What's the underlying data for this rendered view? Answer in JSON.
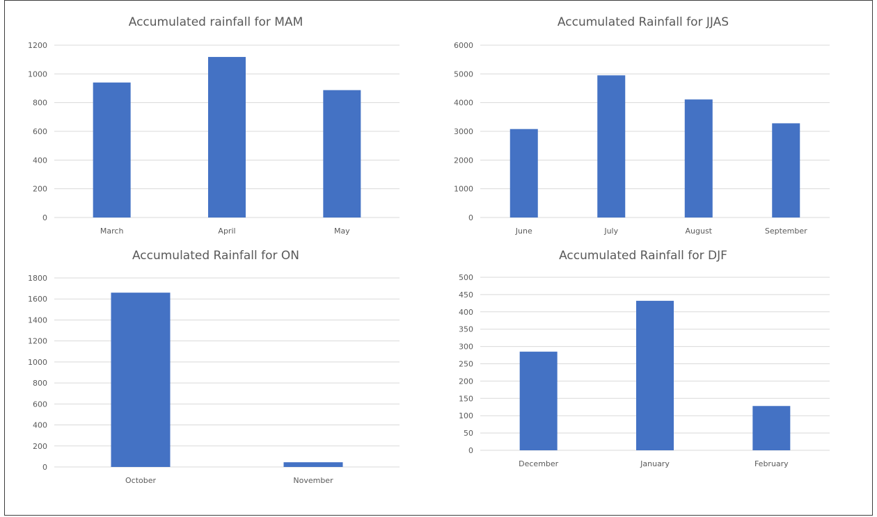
{
  "colors": {
    "bar": "#4472C4",
    "grid": "#D9D9D9",
    "text": "#595959",
    "frame": "#3C3C3C"
  },
  "chart_data": [
    {
      "type": "bar",
      "title": "Accumulated rainfall for MAM",
      "categories": [
        "March",
        "April",
        "May"
      ],
      "values": [
        940,
        1118,
        887
      ],
      "ylim": [
        0,
        1200
      ],
      "yticks": [
        "0",
        "200",
        "400",
        "600",
        "800",
        "1000",
        "1200"
      ],
      "grid": true,
      "legend": "none"
    },
    {
      "type": "bar",
      "title": "Accumulated Rainfall for JJAS",
      "categories": [
        "June",
        "July",
        "August",
        "September"
      ],
      "values": [
        3080,
        4950,
        4110,
        3280
      ],
      "ylim": [
        0,
        6000
      ],
      "yticks": [
        "0",
        "1000",
        "2000",
        "3000",
        "4000",
        "5000",
        "6000"
      ],
      "grid": true,
      "legend": "none"
    },
    {
      "type": "bar",
      "title": "Accumulated Rainfall for ON",
      "categories": [
        "October",
        "November"
      ],
      "values": [
        1660,
        45
      ],
      "ylim": [
        0,
        1800
      ],
      "yticks": [
        "0",
        "200",
        "400",
        "600",
        "800",
        "1000",
        "1200",
        "1400",
        "1600",
        "1800"
      ],
      "grid": true,
      "legend": "none"
    },
    {
      "type": "bar",
      "title": "Accumulated Rainfall for DJF",
      "categories": [
        "December",
        "January",
        "February"
      ],
      "values": [
        285,
        432,
        128
      ],
      "ylim": [
        0,
        500
      ],
      "yticks": [
        "0",
        "50",
        "100",
        "150",
        "200",
        "250",
        "300",
        "350",
        "400",
        "450",
        "500"
      ],
      "grid": true,
      "legend": "none"
    }
  ]
}
